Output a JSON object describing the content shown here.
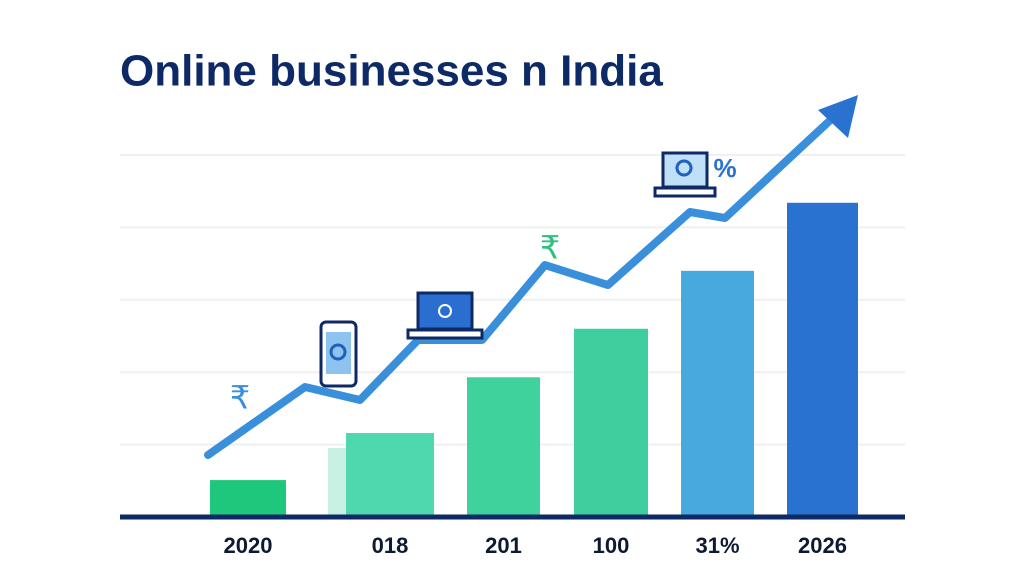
{
  "chart_data": {
    "type": "bar",
    "title": "Online businesses n India",
    "categories": [
      "2020",
      "018",
      "201",
      "100",
      "31%",
      "2026"
    ],
    "values": [
      0.51,
      1.16,
      1.93,
      2.6,
      3.4,
      4.34
    ],
    "colors": [
      "#1fc77c",
      "#4fd8ad",
      "#40d29c",
      "#3fcf9f",
      "#47a9de",
      "#2a72cf"
    ],
    "ylim": [
      0,
      5
    ],
    "yticks": [
      1,
      2,
      3,
      4,
      5
    ],
    "grid": true
  }
}
